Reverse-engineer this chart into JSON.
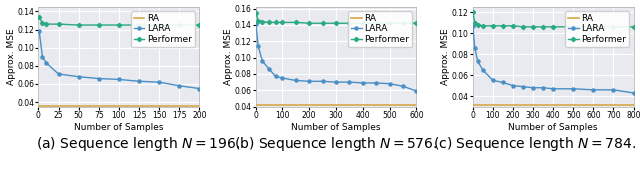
{
  "plots": [
    {
      "caption": "(a) Sequence length $N = 196$.",
      "xlabel": "Number of Samples",
      "ylabel": "Approx. MSE",
      "xlim": [
        0,
        200
      ],
      "xticks": [
        0,
        25,
        50,
        75,
        100,
        125,
        150,
        175,
        200
      ],
      "ylim": [
        0.035,
        0.145
      ],
      "yticks": [
        0.04,
        0.06,
        0.08,
        0.1,
        0.12,
        0.14
      ],
      "RA": {
        "x": [
          0,
          200
        ],
        "y": [
          0.036,
          0.036
        ]
      },
      "LARA": {
        "x": [
          1,
          5,
          10,
          25,
          50,
          75,
          100,
          125,
          150,
          175,
          200
        ],
        "y": [
          0.118,
          0.09,
          0.083,
          0.071,
          0.068,
          0.066,
          0.065,
          0.063,
          0.062,
          0.058,
          0.055
        ]
      },
      "Performer": {
        "x": [
          1,
          5,
          10,
          25,
          50,
          75,
          100,
          125,
          150,
          175,
          200
        ],
        "y": [
          0.134,
          0.127,
          0.126,
          0.126,
          0.125,
          0.125,
          0.125,
          0.125,
          0.125,
          0.125,
          0.125
        ]
      }
    },
    {
      "caption": "(b) Sequence length $N = 576$.",
      "xlabel": "Number of Samples",
      "ylabel": "Approx. MSE",
      "xlim": [
        0,
        600
      ],
      "xticks": [
        0,
        100,
        200,
        300,
        400,
        500,
        600
      ],
      "ylim": [
        0.04,
        0.162
      ],
      "yticks": [
        0.04,
        0.06,
        0.08,
        0.1,
        0.12,
        0.14,
        0.16
      ],
      "RA": {
        "x": [
          0,
          600
        ],
        "y": [
          0.042,
          0.042
        ]
      },
      "LARA": {
        "x": [
          1,
          10,
          25,
          50,
          75,
          100,
          150,
          200,
          250,
          300,
          350,
          400,
          450,
          500,
          550,
          600
        ],
        "y": [
          0.141,
          0.114,
          0.096,
          0.086,
          0.077,
          0.075,
          0.072,
          0.071,
          0.071,
          0.07,
          0.07,
          0.069,
          0.069,
          0.068,
          0.065,
          0.059
        ]
      },
      "Performer": {
        "x": [
          1,
          10,
          25,
          50,
          75,
          100,
          150,
          200,
          250,
          300,
          350,
          400,
          450,
          500,
          550,
          600
        ],
        "y": [
          0.155,
          0.145,
          0.144,
          0.143,
          0.143,
          0.143,
          0.143,
          0.142,
          0.142,
          0.142,
          0.142,
          0.142,
          0.142,
          0.142,
          0.142,
          0.142
        ]
      }
    },
    {
      "caption": "(c) Sequence length $N = 784$.",
      "xlabel": "Number of Samples",
      "ylabel": "Approx. MSE",
      "xlim": [
        0,
        800
      ],
      "xticks": [
        0,
        100,
        200,
        300,
        400,
        500,
        600,
        700,
        800
      ],
      "ylim": [
        0.03,
        0.125
      ],
      "yticks": [
        0.04,
        0.06,
        0.08,
        0.1,
        0.12
      ],
      "RA": {
        "x": [
          0,
          800
        ],
        "y": [
          0.032,
          0.032
        ]
      },
      "LARA": {
        "x": [
          1,
          10,
          25,
          50,
          100,
          150,
          200,
          250,
          300,
          350,
          400,
          500,
          600,
          700,
          800
        ],
        "y": [
          0.107,
          0.086,
          0.073,
          0.065,
          0.055,
          0.053,
          0.05,
          0.049,
          0.048,
          0.048,
          0.047,
          0.047,
          0.046,
          0.046,
          0.043
        ]
      },
      "Performer": {
        "x": [
          1,
          10,
          25,
          50,
          100,
          150,
          200,
          250,
          300,
          350,
          400,
          500,
          600,
          700,
          800
        ],
        "y": [
          0.12,
          0.11,
          0.108,
          0.107,
          0.107,
          0.107,
          0.107,
          0.106,
          0.106,
          0.106,
          0.106,
          0.106,
          0.106,
          0.106,
          0.106
        ]
      }
    }
  ],
  "colors": {
    "RA": "#d4a848",
    "LARA": "#4a8fc5",
    "Performer": "#2aaa82"
  },
  "marker": {
    "LARA": "o",
    "Performer": "D"
  },
  "bg_color": "#e8eaf0",
  "grid_color": "white",
  "legend_fontsize": 6.5,
  "axis_fontsize": 6.5,
  "tick_fontsize": 5.5,
  "caption_fontsize": 10
}
